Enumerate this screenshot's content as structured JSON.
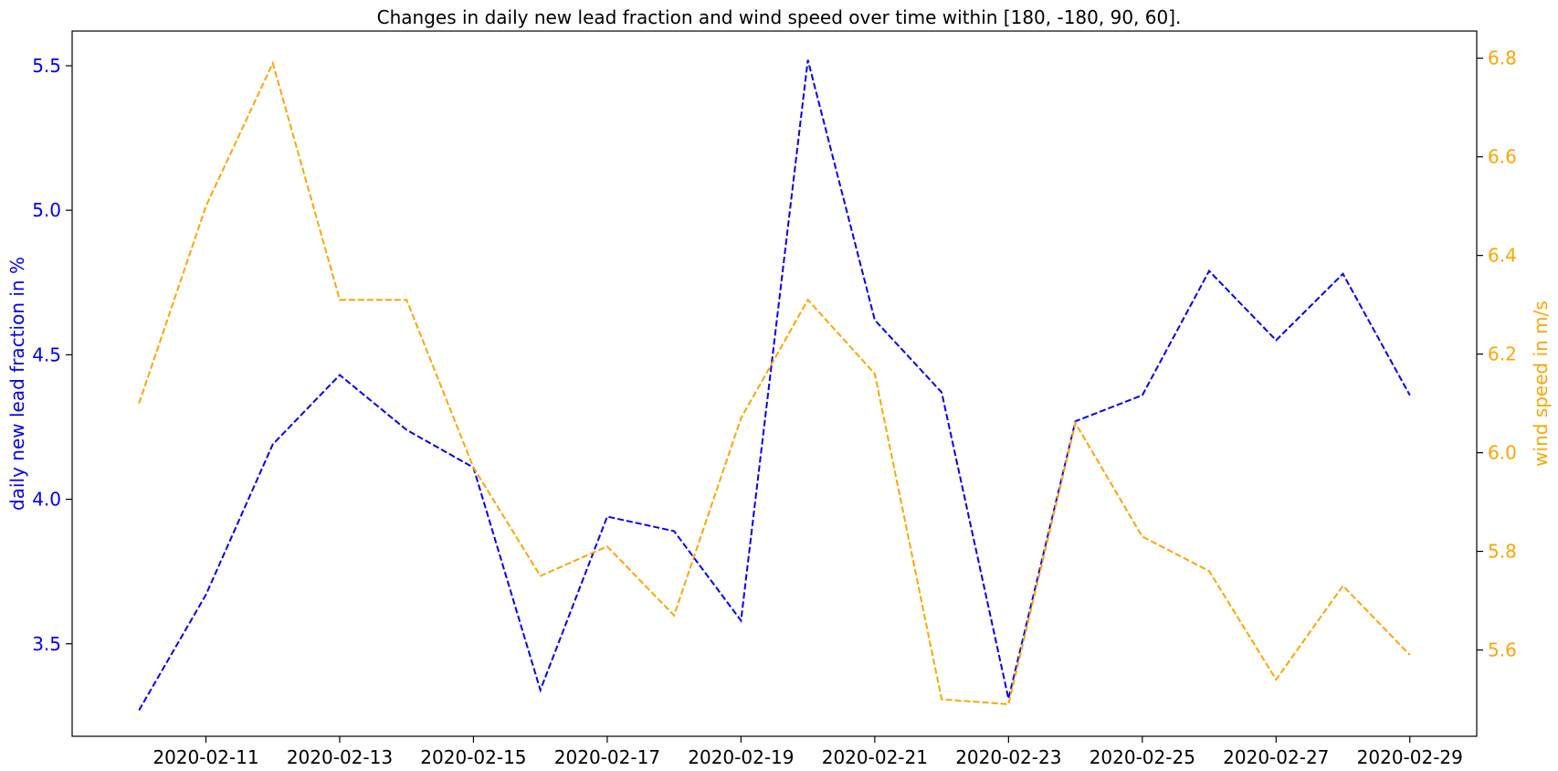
{
  "chart_data": {
    "type": "line",
    "title": "Changes in daily new lead fraction and wind speed over time within [180, -180, 90, 60].",
    "x": [
      "2020-02-10",
      "2020-02-11",
      "2020-02-12",
      "2020-02-13",
      "2020-02-14",
      "2020-02-15",
      "2020-02-16",
      "2020-02-17",
      "2020-02-18",
      "2020-02-19",
      "2020-02-20",
      "2020-02-21",
      "2020-02-22",
      "2020-02-23",
      "2020-02-24",
      "2020-02-25",
      "2020-02-26",
      "2020-02-27",
      "2020-02-28",
      "2020-02-29"
    ],
    "x_tick_labels": [
      "2020-02-11",
      "2020-02-13",
      "2020-02-15",
      "2020-02-17",
      "2020-02-19",
      "2020-02-21",
      "2020-02-23",
      "2020-02-25",
      "2020-02-27",
      "2020-02-29"
    ],
    "xlim": [
      "2020-02-09",
      "2020-03-01"
    ],
    "y_left": {
      "label": "daily new lead fraction in %",
      "color": "#0000ff",
      "ylim": [
        3.18,
        5.62
      ],
      "ticks": [
        "3.5",
        "4.0",
        "4.5",
        "5.0",
        "5.5"
      ]
    },
    "y_right": {
      "label": "wind speed in m/s",
      "color": "#ffa500",
      "ylim": [
        5.425,
        6.855
      ],
      "ticks": [
        "5.6",
        "5.8",
        "6.0",
        "6.2",
        "6.4",
        "6.6",
        "6.8"
      ]
    },
    "series": [
      {
        "axis": "left",
        "color": "#0000ff",
        "style": "dashed",
        "values": [
          3.27,
          3.67,
          4.19,
          4.43,
          4.24,
          4.11,
          3.34,
          3.94,
          3.89,
          3.58,
          5.52,
          4.62,
          4.37,
          3.31,
          4.27,
          4.36,
          4.79,
          4.55,
          4.78,
          4.36
        ]
      },
      {
        "axis": "right",
        "color": "#ffa500",
        "style": "dashed",
        "values": [
          6.1,
          6.5,
          6.79,
          6.31,
          6.31,
          5.97,
          5.75,
          5.81,
          5.67,
          6.07,
          6.31,
          6.16,
          5.5,
          5.49,
          6.06,
          5.83,
          5.76,
          5.54,
          5.73,
          5.59
        ]
      }
    ],
    "grid": false,
    "legend": "none"
  }
}
